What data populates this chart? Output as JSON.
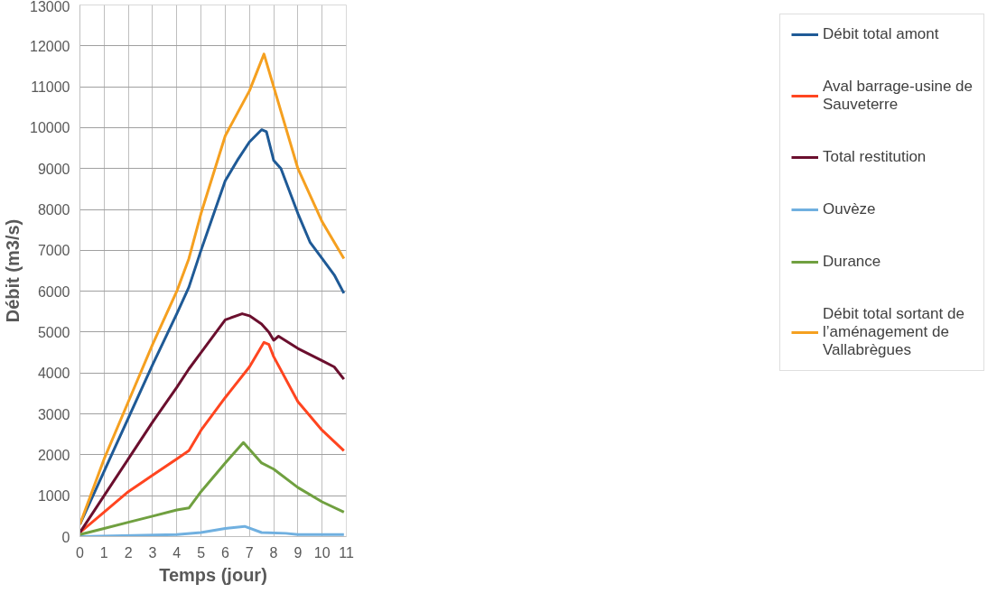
{
  "chart_data": {
    "type": "line",
    "xlabel": "Temps (jour)",
    "ylabel": "Débit (m3/s)",
    "xlim": [
      0,
      11
    ],
    "ylim": [
      0,
      13000
    ],
    "xticks": [
      0,
      1,
      2,
      3,
      4,
      5,
      6,
      7,
      8,
      9,
      10,
      11
    ],
    "yticks": [
      0,
      1000,
      2000,
      3000,
      4000,
      5000,
      6000,
      7000,
      8000,
      9000,
      10000,
      11000,
      12000,
      13000
    ],
    "grid": true,
    "legend": "right",
    "marker": "none",
    "line_style": "solid",
    "series": [
      {
        "name": "Débit total amont",
        "color": "#1f5a96",
        "x": [
          0,
          1,
          2,
          3,
          4,
          4.5,
          5,
          6,
          6.5,
          7,
          7.5,
          7.7,
          8,
          8.3,
          9,
          9.5,
          10,
          10.5,
          10.9
        ],
        "values": [
          300,
          1600,
          2900,
          4200,
          5450,
          6100,
          7000,
          8700,
          9200,
          9650,
          9950,
          9900,
          9200,
          9000,
          7900,
          7200,
          6800,
          6400,
          5950
        ]
      },
      {
        "name": "Aval barrage-usine de Sauveterre",
        "color": "#ff4520",
        "x": [
          0,
          1,
          2,
          3,
          4,
          4.5,
          5,
          6,
          7,
          7.6,
          7.8,
          8,
          9,
          10,
          10.9
        ],
        "values": [
          100,
          600,
          1100,
          1500,
          1900,
          2100,
          2600,
          3400,
          4150,
          4750,
          4700,
          4400,
          3300,
          2600,
          2100
        ]
      },
      {
        "name": "Total restitution",
        "color": "#6b0f2e",
        "x": [
          0,
          1,
          2,
          3,
          4,
          4.5,
          5,
          6,
          6.7,
          7,
          7.5,
          7.8,
          8,
          8.2,
          9,
          10,
          10.5,
          10.9
        ],
        "values": [
          100,
          1000,
          1900,
          2800,
          3650,
          4100,
          4500,
          5300,
          5450,
          5400,
          5200,
          5000,
          4800,
          4900,
          4600,
          4300,
          4150,
          3850
        ]
      },
      {
        "name": "Ouvèze",
        "color": "#70b0e0",
        "x": [
          0,
          4,
          5,
          6,
          6.8,
          7.5,
          8.5,
          9,
          10.9
        ],
        "values": [
          0,
          50,
          100,
          200,
          250,
          100,
          80,
          50,
          50
        ]
      },
      {
        "name": "Durance",
        "color": "#70a040",
        "x": [
          0,
          1,
          2,
          3,
          4,
          4.5,
          5,
          6,
          6.75,
          7.5,
          8,
          9,
          10,
          10.9
        ],
        "values": [
          50,
          200,
          350,
          500,
          650,
          700,
          1100,
          1800,
          2300,
          1800,
          1650,
          1200,
          850,
          600
        ]
      },
      {
        "name": "Débit total sortant de l’aménagement de Vallabrègues",
        "color": "#f5a020",
        "x": [
          0,
          1,
          2,
          3,
          4,
          4.5,
          5,
          6,
          7,
          7.6,
          8,
          9,
          10,
          10.9
        ],
        "values": [
          300,
          1900,
          3300,
          4700,
          6000,
          6800,
          7900,
          9800,
          10900,
          11800,
          11000,
          9000,
          7700,
          6800
        ]
      }
    ]
  }
}
